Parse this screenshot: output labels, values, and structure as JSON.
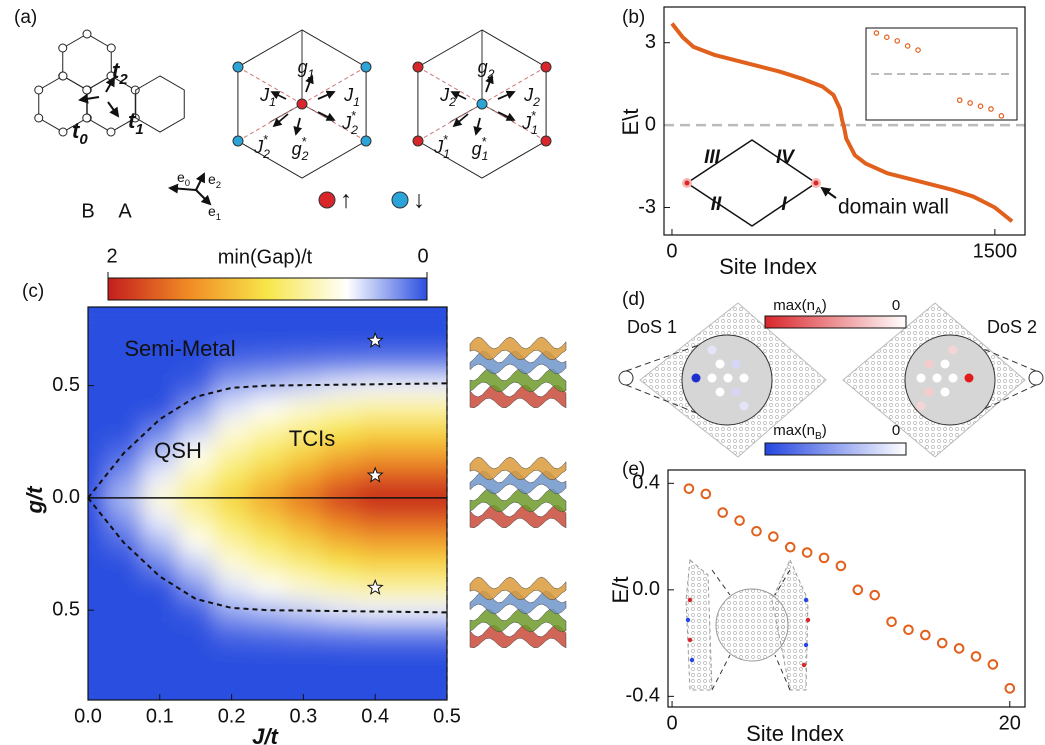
{
  "panel_labels": [
    "(a)",
    "(b)",
    "(c)",
    "(d)",
    "(e)"
  ],
  "diagram_a": {
    "hopping": [
      {
        "t": "t",
        "sub": "2"
      },
      {
        "t": "t",
        "sub": "1"
      },
      {
        "t": "t",
        "sub": "0"
      }
    ],
    "couplings_down": [
      {
        "t": "J",
        "sub": "1"
      },
      {
        "t": "g",
        "sub": "1"
      },
      {
        "t": "J",
        "sub": "1"
      },
      {
        "t": "J",
        "sub": "2",
        "sup": "*"
      },
      {
        "t": "J",
        "sub": "2",
        "sup": "*"
      },
      {
        "t": "g",
        "sub": "2",
        "sup": "*"
      }
    ],
    "couplings_up": [
      {
        "t": "J",
        "sub": "2"
      },
      {
        "t": "g",
        "sub": "2"
      },
      {
        "t": "J",
        "sub": "2"
      },
      {
        "t": "J",
        "sub": "1",
        "sup": "*"
      },
      {
        "t": "J",
        "sub": "1",
        "sup": "*"
      },
      {
        "t": "g",
        "sub": "1",
        "sup": "*"
      }
    ],
    "vectors": [
      {
        "t": "e",
        "sub": "0"
      },
      {
        "t": "e",
        "sub": "2"
      },
      {
        "t": "e",
        "sub": "1"
      }
    ],
    "sites": [
      "B",
      "A"
    ],
    "spins": [
      "↑",
      "↓"
    ]
  },
  "diagram_d": {
    "dos": [
      "DoS 1",
      "DoS 2"
    ],
    "colorbars": [
      {
        "label": {
          "t": "max(n",
          "sub": "A",
          "end": ")"
        },
        "low": "0",
        "color": "#d9262b"
      },
      {
        "label": {
          "t": "max(n",
          "sub": "B",
          "end": ")"
        },
        "low": "0",
        "color": "#2546e0"
      }
    ]
  },
  "chart_data": [
    {
      "type": "line",
      "color": "#e0601c",
      "x": [
        0,
        50,
        100,
        200,
        300,
        400,
        500,
        600,
        700,
        750,
        780,
        790,
        800,
        810,
        850,
        900,
        1000,
        1100,
        1200,
        1300,
        1400,
        1500,
        1580
      ],
      "values": [
        3.7,
        3.2,
        2.85,
        2.55,
        2.35,
        2.15,
        1.95,
        1.7,
        1.4,
        1.1,
        0.6,
        0.2,
        -0.1,
        -0.5,
        -1.1,
        -1.4,
        -1.75,
        -1.95,
        -2.15,
        -2.35,
        -2.6,
        -3.0,
        -3.5
      ],
      "xlim": [
        -37,
        1640
      ],
      "ylim": [
        -4,
        4.3
      ],
      "xticks": [
        0,
        1500
      ],
      "yticks": [
        -3,
        0,
        3
      ],
      "xlabel": "Site Index",
      "ylabel": "E\\t",
      "reference_line": 0,
      "inset": {
        "x": [
          1,
          2,
          3,
          4,
          5,
          9,
          10,
          11,
          12,
          13
        ],
        "values": [
          0.89,
          0.8,
          0.72,
          0.61,
          0.52,
          -0.57,
          -0.63,
          -0.7,
          -0.76,
          -0.91
        ],
        "xlim": [
          0,
          14.5
        ],
        "ylim": [
          -1,
          1
        ],
        "reference_line": 0
      },
      "annotations": [
        "III",
        "IV",
        "II",
        "I",
        "domain wall"
      ]
    },
    {
      "type": "heatmap",
      "x": [
        0,
        0.05,
        0.1,
        0.15,
        0.2,
        0.25,
        0.3,
        0.35,
        0.4,
        0.45,
        0.5
      ],
      "y": [
        0.8,
        0.7,
        0.6,
        0.5,
        0.4,
        0.3,
        0.2,
        0.1,
        0,
        -0.1,
        -0.2,
        -0.3,
        -0.4,
        -0.5,
        -0.6,
        -0.7,
        -0.8,
        -0.9
      ],
      "values": [
        [
          0,
          0,
          0,
          0,
          0,
          0,
          0,
          0,
          0,
          0,
          0
        ],
        [
          0,
          0,
          0,
          0,
          0,
          0,
          0,
          0,
          0,
          0,
          0
        ],
        [
          0,
          0,
          0,
          0,
          0.08,
          0.1,
          0.12,
          0.14,
          0.15,
          0.15,
          0.15
        ],
        [
          0,
          0,
          0,
          0.04,
          0.25,
          0.31,
          0.37,
          0.43,
          0.46,
          0.46,
          0.46
        ],
        [
          0,
          0,
          0,
          0.2,
          0.42,
          0.52,
          0.62,
          0.71,
          0.77,
          0.77,
          0.77
        ],
        [
          0,
          0,
          0.15,
          0.36,
          0.59,
          0.73,
          0.86,
          1.0,
          1.08,
          1.08,
          1.08
        ],
        [
          0,
          0.08,
          0.3,
          0.53,
          0.76,
          0.93,
          1.11,
          1.28,
          1.38,
          1.38,
          1.38
        ],
        [
          0,
          0.19,
          0.45,
          0.69,
          0.93,
          1.14,
          1.35,
          1.57,
          1.69,
          1.69,
          1.69
        ],
        [
          0,
          0.3,
          0.6,
          0.85,
          1.1,
          1.35,
          1.6,
          1.85,
          2,
          2,
          2
        ],
        [
          0,
          0.19,
          0.45,
          0.69,
          0.93,
          1.14,
          1.35,
          1.57,
          1.69,
          1.69,
          1.69
        ],
        [
          0,
          0.08,
          0.3,
          0.53,
          0.76,
          0.93,
          1.11,
          1.28,
          1.38,
          1.38,
          1.38
        ],
        [
          0,
          0,
          0.15,
          0.36,
          0.59,
          0.73,
          0.86,
          1.0,
          1.08,
          1.08,
          1.08
        ],
        [
          0,
          0,
          0,
          0.2,
          0.42,
          0.52,
          0.62,
          0.71,
          0.77,
          0.77,
          0.77
        ],
        [
          0,
          0,
          0,
          0.04,
          0.25,
          0.31,
          0.37,
          0.43,
          0.46,
          0.46,
          0.46
        ],
        [
          0,
          0,
          0,
          0,
          0.08,
          0.1,
          0.12,
          0.14,
          0.15,
          0.15,
          0.15
        ],
        [
          0,
          0,
          0,
          0,
          0,
          0,
          0,
          0,
          0,
          0,
          0
        ],
        [
          0,
          0,
          0,
          0,
          0,
          0,
          0,
          0,
          0,
          0,
          0
        ],
        [
          0,
          0,
          0,
          0,
          0,
          0,
          0,
          0,
          0,
          0,
          0
        ]
      ],
      "xlim": [
        0,
        0.5
      ],
      "ylim": [
        -0.9,
        0.85
      ],
      "xticks": [
        {
          "value": 0,
          "label": "0.0"
        },
        0.1,
        0.2,
        0.3,
        0.4,
        0.5
      ],
      "yticks": [
        0.5,
        {
          "value": 0,
          "label": "0.0"
        },
        {
          "value": -0.5,
          "label": "0.5"
        }
      ],
      "xlabel": "J/t",
      "ylabel": "g/t",
      "zlim": [
        0,
        2
      ],
      "colorbar": {
        "title": "min(Gap)/t",
        "ticks": [
          2,
          0
        ],
        "colors": [
          "#c41e1e",
          "#f08a24",
          "#f7e64a",
          "#ffffff",
          "#2b4fe0"
        ]
      },
      "regions": [
        "Semi-Metal",
        "TCIs",
        "QSH"
      ],
      "boundary": {
        "x": [
          0,
          0.05,
          0.1,
          0.15,
          0.2,
          0.25,
          0.5
        ],
        "upper": [
          0,
          0.2,
          0.35,
          0.45,
          0.49,
          0.5,
          0.51
        ],
        "lower": [
          0,
          -0.2,
          -0.35,
          -0.45,
          -0.49,
          -0.5,
          -0.51
        ]
      },
      "stars": {
        "x": [
          0.4,
          0.4,
          0.4
        ],
        "y": [
          0.7,
          0.1,
          -0.4
        ]
      }
    },
    {
      "type": "scatter",
      "color": "#e0601c",
      "x": [
        1,
        2,
        3,
        4,
        5,
        6,
        7,
        8,
        9,
        10,
        11,
        12,
        13,
        14,
        15,
        16,
        17,
        18,
        19,
        20
      ],
      "values": [
        0.38,
        0.36,
        0.29,
        0.26,
        0.22,
        0.2,
        0.16,
        0.14,
        0.12,
        0.09,
        0.0,
        -0.02,
        -0.12,
        -0.15,
        -0.17,
        -0.2,
        -0.22,
        -0.25,
        -0.28,
        -0.37
      ],
      "xlim": [
        -0.24,
        20.9
      ],
      "ylim": [
        -0.44,
        0.45
      ],
      "xticks": [
        0,
        20
      ],
      "yticks": [
        0.4,
        {
          "value": 0,
          "label": "0.0"
        },
        -0.4
      ],
      "xlabel": "Site Index",
      "ylabel": "E/t"
    }
  ]
}
